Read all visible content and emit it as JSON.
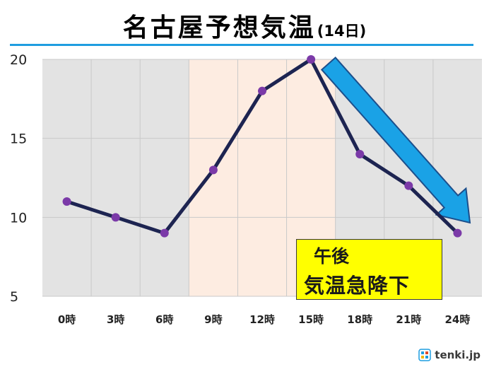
{
  "title": {
    "main": "名古屋予想気温",
    "sub": "(14日)"
  },
  "callout": {
    "line1": "午後",
    "line2": "気温急降下"
  },
  "brand": {
    "logo_text": "tenki.jp",
    "icon": "tenki-logo-icon"
  },
  "colors": {
    "title_rule": "#1f9de0",
    "line": "#1d2451",
    "marker": "#7b3aa8",
    "plot_bg": "#e3e3e3",
    "daytime_band": "#fdece1",
    "arrow_fill": "#1aa2e6",
    "arrow_stroke": "#1c4f8c",
    "callout_bg": "#ffff00"
  },
  "chart_data": {
    "type": "line",
    "categories": [
      "0時",
      "3時",
      "6時",
      "9時",
      "12時",
      "15時",
      "18時",
      "21時",
      "24時"
    ],
    "series": [
      {
        "values": [
          11,
          10,
          9,
          13,
          18,
          20,
          14,
          12,
          9
        ]
      }
    ],
    "ylim": [
      5,
      20
    ],
    "yticks": [
      5,
      10,
      15,
      20
    ],
    "grid": true,
    "shaded_band": {
      "from_index": 2.5,
      "to_index": 5.5,
      "meaning": "daytime"
    },
    "title": "名古屋予想気温(14日)",
    "xlabel": "",
    "ylabel": ""
  }
}
